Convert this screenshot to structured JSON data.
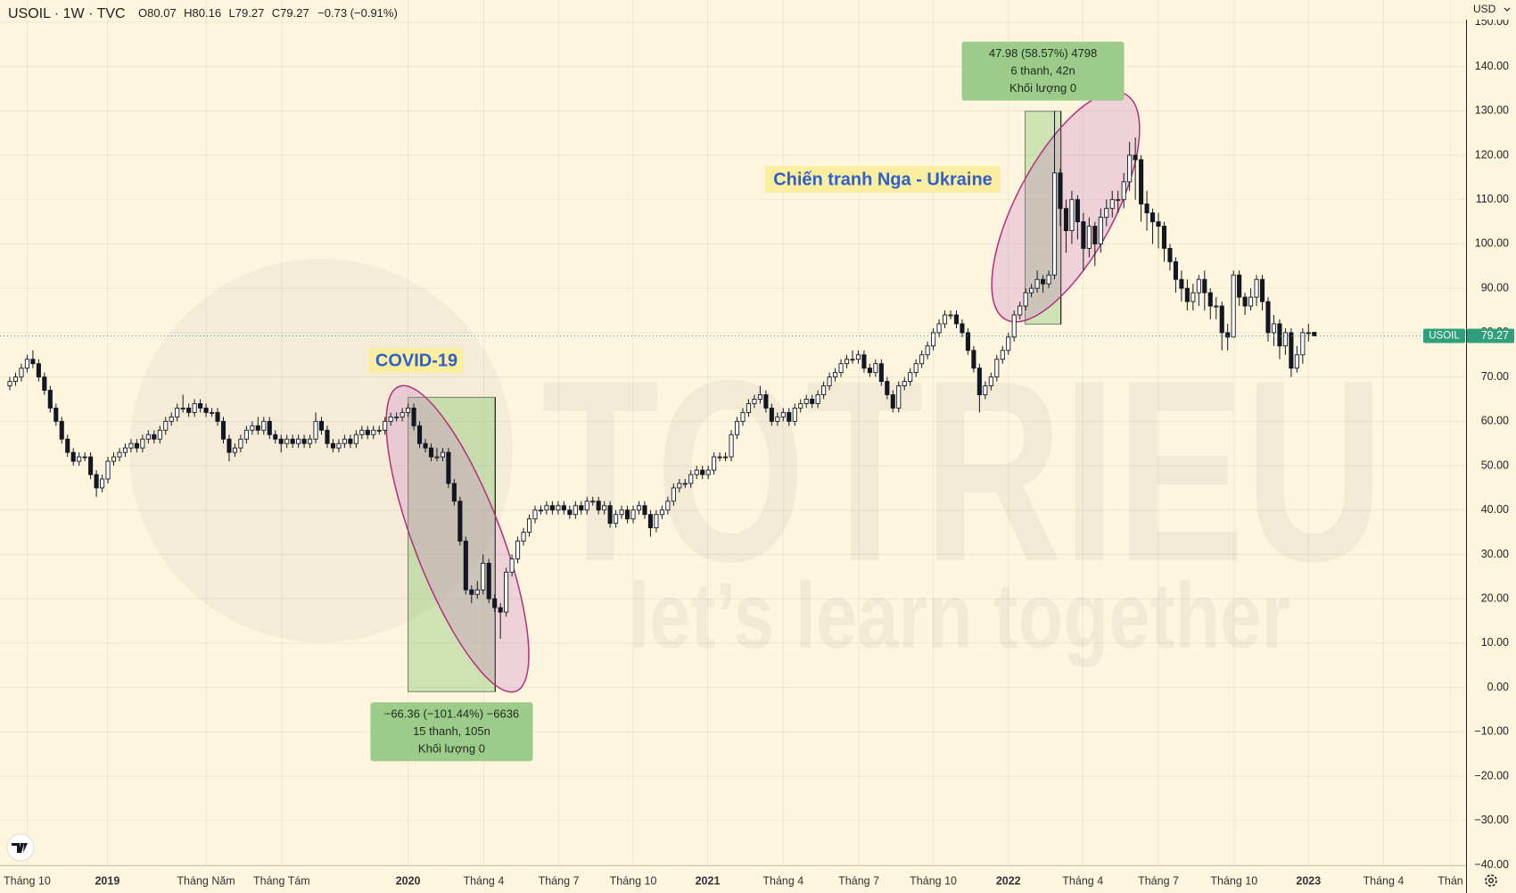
{
  "header": {
    "title": "USOIL · 1W · TVC",
    "o": "O",
    "h": "H",
    "l": "L",
    "c": "C",
    "change": "−0.73 (−0.91%)",
    "currency": "USD"
  },
  "watermark": {
    "brand": "TOTRIEU",
    "slogan": "let’s learn together"
  },
  "chart_data": {
    "type": "candlestick",
    "up_color": "#ffffff",
    "down_color": "#131722",
    "grid": true,
    "price_tag": "USOIL",
    "annotations": [
      "COVID-19",
      "Chiến tranh Nga - Ukraine"
    ],
    "open": [
      68,
      69,
      70,
      72,
      74,
      73,
      70,
      67,
      63,
      60,
      56,
      53,
      51,
      52,
      52,
      48,
      45,
      47,
      51,
      52,
      53,
      54,
      55,
      54,
      56,
      57,
      56,
      58,
      60,
      61,
      63,
      63,
      62,
      64,
      63,
      62,
      62,
      60,
      56,
      53,
      54,
      56,
      58,
      59,
      58,
      60,
      57,
      56,
      55,
      56,
      55,
      56,
      55,
      56,
      60,
      58,
      55,
      54,
      55,
      56,
      55,
      57,
      58,
      57,
      58,
      58,
      60,
      61,
      61,
      62,
      63,
      59,
      55,
      54,
      52,
      52,
      53,
      46,
      42,
      33,
      22,
      21,
      22,
      28,
      20,
      18,
      17,
      26,
      29,
      33,
      35,
      38,
      40,
      40,
      41,
      40,
      41,
      40,
      39,
      41,
      40,
      42,
      42,
      40,
      41,
      37,
      39,
      40,
      38,
      40,
      41,
      39,
      36,
      39,
      40,
      42,
      45,
      46,
      46,
      48,
      49,
      48,
      49,
      52,
      52,
      52,
      57,
      60,
      62,
      64,
      65,
      66,
      63,
      60,
      61,
      62,
      60,
      63,
      64,
      65,
      64,
      66,
      68,
      70,
      71,
      73,
      74,
      74,
      75,
      72,
      71,
      73,
      69,
      66,
      63,
      68,
      69,
      71,
      73,
      75,
      77,
      80,
      82,
      84,
      84,
      82,
      80,
      76,
      72,
      66,
      68,
      70,
      74,
      76,
      79,
      84,
      86,
      89,
      90,
      92,
      91,
      93,
      116,
      108,
      103,
      110,
      105,
      99,
      104,
      100,
      106,
      108,
      110,
      110,
      114,
      120,
      119,
      109,
      107,
      105,
      104,
      99,
      96,
      92,
      90,
      87,
      89,
      92,
      89,
      86,
      86,
      80,
      79,
      93,
      88,
      86,
      88,
      92,
      87,
      80,
      82,
      77,
      80,
      72,
      75,
      80,
      80.07
    ],
    "high": [
      70,
      71,
      73,
      75,
      76,
      74,
      71,
      68,
      64,
      61,
      57,
      54,
      53,
      53,
      53,
      49,
      48,
      52,
      53,
      54,
      55,
      56,
      56,
      57,
      58,
      58,
      59,
      61,
      62,
      64,
      66,
      64,
      65,
      65,
      64,
      63,
      63,
      61,
      57,
      55,
      57,
      59,
      60,
      61,
      61,
      61,
      58,
      57,
      57,
      57,
      57,
      57,
      57,
      62,
      61,
      59,
      56,
      56,
      57,
      57,
      58,
      59,
      59,
      59,
      59,
      61,
      62,
      62,
      63,
      64,
      64,
      60,
      56,
      55,
      54,
      54,
      54,
      47,
      43,
      34,
      23,
      24,
      30,
      29,
      21,
      19,
      27,
      30,
      34,
      36,
      39,
      41,
      41,
      42,
      42,
      42,
      42,
      41,
      42,
      42,
      43,
      43,
      43,
      42,
      42,
      40,
      41,
      41,
      41,
      42,
      42,
      40,
      40,
      41,
      43,
      46,
      47,
      47,
      49,
      50,
      50,
      50,
      53,
      53,
      53,
      58,
      61,
      63,
      65,
      66,
      68,
      67,
      64,
      62,
      63,
      63,
      64,
      65,
      66,
      66,
      67,
      69,
      71,
      72,
      74,
      75,
      76,
      76,
      76,
      73,
      74,
      74,
      70,
      67,
      69,
      70,
      72,
      74,
      76,
      78,
      81,
      83,
      85,
      85,
      85,
      83,
      81,
      77,
      73,
      69,
      71,
      75,
      77,
      80,
      85,
      87,
      90,
      91,
      94,
      93,
      94,
      130,
      117,
      110,
      112,
      111,
      107,
      106,
      105,
      108,
      110,
      112,
      112,
      116,
      123,
      124,
      120,
      112,
      108,
      107,
      105,
      100,
      97,
      94,
      92,
      91,
      93,
      94,
      90,
      88,
      87,
      82,
      94,
      94,
      89,
      90,
      93,
      93,
      88,
      84,
      83,
      81,
      81,
      77,
      81,
      82,
      80.16
    ],
    "low": [
      67,
      68,
      69,
      71,
      72,
      69,
      66,
      62,
      59,
      55,
      52,
      50,
      50,
      51,
      47,
      43,
      44,
      46,
      50,
      51,
      52,
      53,
      53,
      53,
      55,
      55,
      55,
      57,
      59,
      60,
      62,
      61,
      61,
      62,
      61,
      61,
      59,
      55,
      51,
      52,
      53,
      55,
      57,
      57,
      57,
      56,
      55,
      53,
      54,
      54,
      54,
      54,
      54,
      55,
      57,
      54,
      53,
      53,
      54,
      54,
      54,
      56,
      56,
      56,
      57,
      57,
      59,
      60,
      60,
      61,
      58,
      54,
      53,
      51,
      51,
      51,
      45,
      41,
      32,
      21,
      19,
      20,
      21,
      19,
      17,
      11,
      16,
      25,
      28,
      32,
      34,
      37,
      39,
      39,
      39,
      39,
      39,
      38,
      38,
      39,
      39,
      41,
      39,
      39,
      36,
      36,
      38,
      37,
      37,
      39,
      38,
      34,
      35,
      38,
      39,
      41,
      44,
      45,
      45,
      47,
      47,
      47,
      48,
      51,
      51,
      51,
      56,
      59,
      61,
      63,
      64,
      62,
      59,
      59,
      60,
      59,
      59,
      62,
      63,
      63,
      63,
      65,
      67,
      69,
      70,
      72,
      73,
      73,
      71,
      70,
      70,
      68,
      65,
      62,
      62,
      67,
      68,
      70,
      72,
      74,
      76,
      79,
      81,
      83,
      81,
      79,
      75,
      71,
      62,
      65,
      67,
      69,
      73,
      75,
      78,
      83,
      85,
      88,
      89,
      89,
      90,
      92,
      104,
      98,
      100,
      101,
      94,
      97,
      95,
      98,
      104,
      106,
      107,
      108,
      112,
      110,
      105,
      103,
      100,
      99,
      96,
      94,
      89,
      87,
      85,
      85,
      86,
      85,
      83,
      83,
      76,
      76,
      79,
      86,
      84,
      85,
      86,
      85,
      78,
      77,
      74,
      75,
      70,
      71,
      73,
      78,
      79.27
    ],
    "close": [
      69,
      70,
      72,
      74,
      73,
      70,
      67,
      63,
      60,
      56,
      53,
      51,
      52,
      52,
      48,
      45,
      47,
      51,
      52,
      53,
      54,
      55,
      54,
      56,
      57,
      56,
      58,
      60,
      61,
      63,
      63,
      62,
      64,
      63,
      62,
      62,
      60,
      56,
      53,
      54,
      56,
      58,
      59,
      58,
      60,
      57,
      56,
      55,
      56,
      55,
      56,
      55,
      56,
      60,
      58,
      55,
      54,
      55,
      56,
      55,
      57,
      58,
      57,
      58,
      58,
      60,
      61,
      61,
      62,
      63,
      59,
      55,
      54,
      52,
      52,
      53,
      46,
      42,
      33,
      22,
      21,
      22,
      28,
      20,
      18,
      17,
      26,
      29,
      33,
      35,
      38,
      40,
      40,
      41,
      40,
      41,
      40,
      39,
      41,
      40,
      42,
      42,
      40,
      41,
      37,
      39,
      40,
      38,
      40,
      41,
      39,
      36,
      39,
      40,
      42,
      45,
      46,
      46,
      48,
      49,
      48,
      49,
      52,
      52,
      52,
      57,
      60,
      62,
      64,
      65,
      66,
      63,
      60,
      61,
      62,
      60,
      63,
      64,
      65,
      64,
      66,
      68,
      70,
      71,
      73,
      74,
      74,
      75,
      72,
      71,
      73,
      69,
      66,
      63,
      68,
      69,
      71,
      73,
      75,
      77,
      80,
      82,
      84,
      84,
      82,
      80,
      76,
      72,
      66,
      68,
      70,
      74,
      76,
      79,
      84,
      86,
      89,
      90,
      92,
      91,
      93,
      116,
      108,
      103,
      110,
      105,
      99,
      104,
      100,
      106,
      108,
      110,
      110,
      114,
      120,
      119,
      109,
      107,
      105,
      104,
      99,
      96,
      92,
      90,
      87,
      89,
      92,
      89,
      86,
      86,
      80,
      79,
      93,
      88,
      86,
      88,
      92,
      87,
      80,
      82,
      77,
      80,
      72,
      75,
      80,
      80,
      79.27
    ],
    "measures": [
      {
        "start": 69,
        "end": 84.1,
        "from": 65.42,
        "to": -0.94,
        "lines": [
          "−66.36 (−101.44%) −6636",
          "15 thanh, 105n",
          "Khối lượng 0"
        ]
      },
      {
        "start": 175.9,
        "end": 182.1,
        "from": 81.93,
        "to": 129.91,
        "lines": [
          "47.98 (58.57%) 4798",
          "6 thanh, 42n",
          "Khối lượng 0"
        ]
      }
    ],
    "xlim": [
      -1.7,
      252.3
    ],
    "xticks": [
      {
        "value": 3.0,
        "label": "Tháng 10"
      },
      {
        "value": 16.9,
        "label": "2019"
      },
      {
        "value": 34.0,
        "label": "Tháng Năm"
      },
      {
        "value": 47.1,
        "label": "Tháng Tám"
      },
      {
        "value": 69.0,
        "label": "2020"
      },
      {
        "value": 82.1,
        "label": "Tháng 4"
      },
      {
        "value": 95.1,
        "label": "Tháng 7"
      },
      {
        "value": 108.0,
        "label": "Tháng 10"
      },
      {
        "value": 120.9,
        "label": "2021"
      },
      {
        "value": 134.0,
        "label": "Tháng 4"
      },
      {
        "value": 147.1,
        "label": "Tháng 7"
      },
      {
        "value": 160.0,
        "label": "Tháng 10"
      },
      {
        "value": 173.0,
        "label": "2022"
      },
      {
        "value": 185.9,
        "label": "Tháng 4"
      },
      {
        "value": 199.0,
        "label": "Tháng 7"
      },
      {
        "value": 212.1,
        "label": "Tháng 10"
      },
      {
        "value": 225.0,
        "label": "2023"
      },
      {
        "value": 238.0,
        "label": "Tháng 4"
      },
      {
        "value": 249.6,
        "label": "Thán"
      }
    ],
    "ylim": [
      -40.1,
      155.0
    ],
    "yticks": [
      {
        "value": -40,
        "label": "−40.00"
      },
      {
        "value": -30,
        "label": "−30.00"
      },
      {
        "value": -20,
        "label": "−20.00"
      },
      {
        "value": -10,
        "label": "−10.00"
      },
      {
        "value": 0,
        "label": "0.00"
      },
      {
        "value": 10,
        "label": "10.00"
      },
      {
        "value": 20,
        "label": "20.00"
      },
      {
        "value": 30,
        "label": "30.00"
      },
      {
        "value": 40,
        "label": "40.00"
      },
      {
        "value": 50,
        "label": "50.00"
      },
      {
        "value": 60,
        "label": "60.00"
      },
      {
        "value": 70,
        "label": "70.00"
      },
      {
        "value": 80,
        "label": "80.00"
      },
      {
        "value": 90,
        "label": "90.00"
      },
      {
        "value": 100,
        "label": "100.00"
      },
      {
        "value": 110,
        "label": "110.00"
      },
      {
        "value": 120,
        "label": "120.00"
      },
      {
        "value": 130,
        "label": "130.00"
      },
      {
        "value": 140,
        "label": "140.00"
      },
      {
        "value": 150,
        "label": "150.00"
      }
    ]
  }
}
